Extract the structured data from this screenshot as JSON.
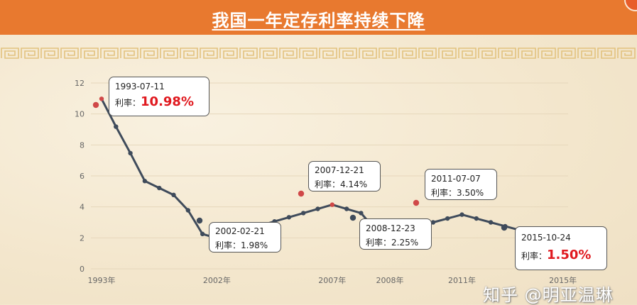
{
  "header": {
    "title": "我国一年定存利率持续下降"
  },
  "chart_data": {
    "type": "line",
    "title": "",
    "xlabel": "",
    "ylabel": "",
    "ylim": [
      0,
      12
    ],
    "yticks": [
      0,
      2,
      4,
      6,
      8,
      10,
      12
    ],
    "grid": true,
    "line_color": "#3f4b5b",
    "highlight_color": "#d04848",
    "values": [
      10.98,
      9.18,
      7.47,
      5.67,
      5.22,
      4.77,
      3.78,
      2.25,
      1.98,
      2.25,
      2.52,
      2.79,
      3.06,
      3.33,
      3.6,
      3.87,
      4.14,
      3.87,
      3.6,
      2.52,
      2.25,
      2.5,
      2.75,
      3.0,
      3.25,
      3.5,
      3.25,
      3.0,
      2.75,
      2.5,
      2.25,
      2.0,
      1.75,
      1.5
    ],
    "xtick_labels": [
      {
        "index": 0,
        "label": "1993年"
      },
      {
        "index": 8,
        "label": "2002年"
      },
      {
        "index": 16,
        "label": "2007年"
      },
      {
        "index": 20,
        "label": "2008年"
      },
      {
        "index": 25,
        "label": "2011年"
      },
      {
        "index": 32,
        "label": "2015年"
      }
    ],
    "annotations": [
      {
        "date": "1993-07-11",
        "label": "利率：",
        "value": "10.98%",
        "emphasis": true
      },
      {
        "date": "2002-02-21",
        "label": "利率：",
        "value": "1.98%",
        "emphasis": false
      },
      {
        "date": "2007-12-21",
        "label": "利率：",
        "value": "4.14%",
        "emphasis": false
      },
      {
        "date": "2008-12-23",
        "label": "利率：",
        "value": "2.25%",
        "emphasis": false
      },
      {
        "date": "2011-07-07",
        "label": "利率：",
        "value": "3.50%",
        "emphasis": false
      },
      {
        "date": "2015-10-24",
        "label": "利率：",
        "value": "1.50%",
        "emphasis": true
      }
    ]
  },
  "watermark": "知乎 @明亚温琳"
}
